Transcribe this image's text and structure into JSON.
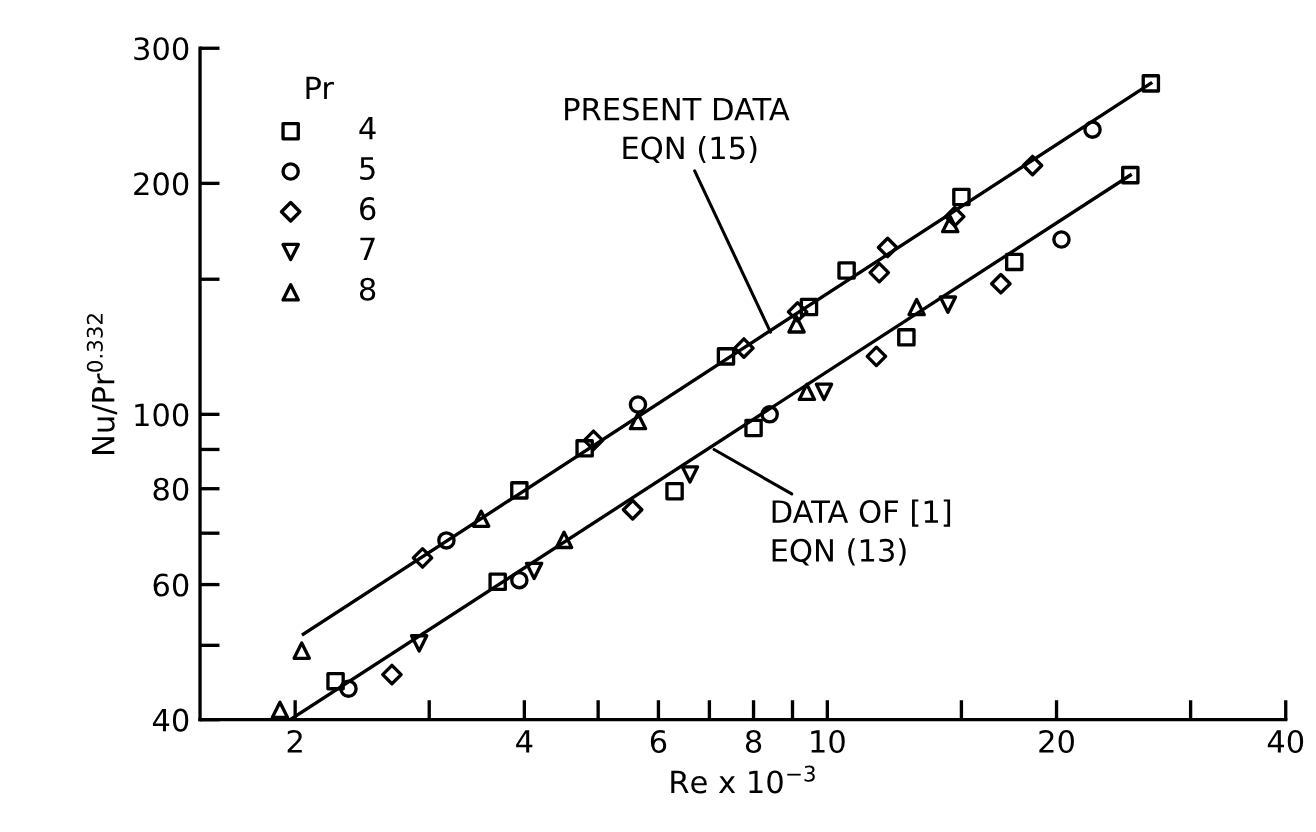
{
  "chart_data": {
    "type": "scatter",
    "xlabel": "Re x 10$^{−3}$",
    "ylabel": "Nu/Pr$^{0.332}$",
    "legend_title": "Pr",
    "legend": "top left",
    "log": "xy",
    "grid": false,
    "xlim": [
      1.5,
      40
    ],
    "ylim": [
      40,
      300
    ],
    "xticks": [
      2,
      {
        "value": 3,
        "label": null
      },
      4,
      {
        "value": 5,
        "label": null
      },
      6,
      {
        "value": 7,
        "label": null
      },
      8,
      {
        "value": 9,
        "label": null
      },
      10,
      {
        "value": 15,
        "label": null
      },
      20,
      {
        "value": 30,
        "label": null
      },
      40
    ],
    "yticks": [
      40,
      {
        "value": 50,
        "label": null
      },
      60,
      {
        "value": 70,
        "label": null
      },
      80,
      {
        "value": 90,
        "label": null
      },
      100,
      {
        "value": 150,
        "label": null
      },
      200,
      300
    ],
    "series": [
      {
        "name": "4",
        "marker": "square",
        "color": "#000000",
        "x": [
          3.94,
          4.8,
          7.36,
          9.46,
          10.6,
          15.0,
          26.6,
          2.26,
          3.69,
          6.3,
          8.0,
          12.7,
          17.6,
          25.0
        ],
        "values": [
          79.6,
          90.3,
          119,
          138,
          154,
          192,
          270,
          44.9,
          60.5,
          79.4,
          96,
          126,
          158,
          205
        ]
      },
      {
        "name": "5",
        "marker": "circle",
        "color": "#000000",
        "x": [
          3.16,
          5.64,
          22.3,
          2.35,
          3.94,
          8.4,
          20.3
        ],
        "values": [
          68.5,
          103,
          235,
          43.9,
          60.8,
          100,
          169
        ]
      },
      {
        "name": "6",
        "marker": "diamond",
        "color": "#000000",
        "x": [
          2.94,
          4.93,
          7.77,
          9.14,
          11.7,
          12.0,
          14.7,
          18.6,
          2.68,
          5.55,
          11.6,
          16.9
        ],
        "values": [
          65,
          92.5,
          122,
          136,
          153,
          165,
          181,
          211,
          45.8,
          75.1,
          119,
          148
        ]
      },
      {
        "name": "7",
        "marker": "triangle_down",
        "color": "#000000",
        "x": [
          2.91,
          4.12,
          6.6,
          9.9,
          14.4
        ],
        "values": [
          50.3,
          62.5,
          83.5,
          107,
          139
        ]
      },
      {
        "name": "8",
        "marker": "triangle",
        "color": "#000000",
        "x": [
          2.04,
          3.51,
          5.64,
          9.11,
          14.5,
          1.91,
          4.51,
          9.4,
          13.1
        ],
        "values": [
          49.2,
          73.1,
          98,
          131,
          177,
          41.2,
          68.6,
          107,
          138
        ]
      },
      {
        "type": "line",
        "marker": "none",
        "line_style": "solid",
        "color": "#000000",
        "x": [
          2.05,
          26.6
        ],
        "values": [
          51.7,
          270
        ]
      },
      {
        "type": "line",
        "marker": "none",
        "line_style": "solid",
        "color": "#000000",
        "x": [
          1.97,
          25.0
        ],
        "values": [
          40,
          205
        ]
      }
    ],
    "annotations": [
      {
        "text": "PRESENT DATA\n      EQN (15)",
        "x": 8.42,
        "y": 128
      },
      {
        "text": "DATA OF [1]\nEQN (13)",
        "x": 7.1,
        "y": 90
      }
    ]
  }
}
